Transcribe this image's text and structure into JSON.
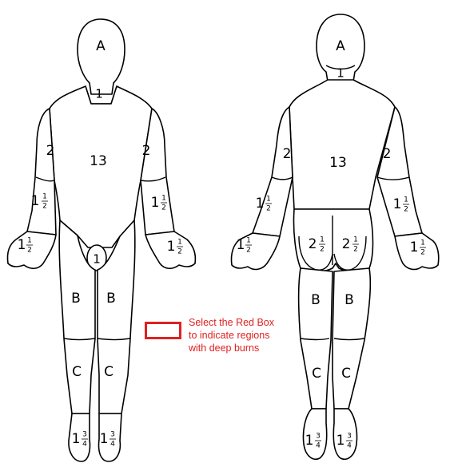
{
  "front": {
    "head": "A",
    "neck": "1",
    "trunk": "13",
    "upper_arm_left": "2",
    "upper_arm_right": "2",
    "forearm_left": {
      "whole": "1",
      "num": "1",
      "den": "2"
    },
    "forearm_right": {
      "whole": "1",
      "num": "1",
      "den": "2"
    },
    "hand_left": {
      "whole": "1",
      "num": "1",
      "den": "2"
    },
    "hand_right": {
      "whole": "1",
      "num": "1",
      "den": "2"
    },
    "genitals": "1",
    "thigh_left": "B",
    "thigh_right": "B",
    "leg_left": "C",
    "leg_right": "C",
    "foot_left": {
      "whole": "1",
      "num": "3",
      "den": "4"
    },
    "foot_right": {
      "whole": "1",
      "num": "3",
      "den": "4"
    }
  },
  "back": {
    "head": "A",
    "neck": "1",
    "trunk": "13",
    "upper_arm_left": "2",
    "upper_arm_right": "2",
    "forearm_left": {
      "whole": "1",
      "num": "1",
      "den": "2"
    },
    "forearm_right": {
      "whole": "1",
      "num": "1",
      "den": "2"
    },
    "hand_left": {
      "whole": "1",
      "num": "1",
      "den": "2"
    },
    "hand_right": {
      "whole": "1",
      "num": "1",
      "den": "2"
    },
    "buttock_left": {
      "whole": "2",
      "num": "1",
      "den": "2"
    },
    "buttock_right": {
      "whole": "2",
      "num": "1",
      "den": "2"
    },
    "thigh_left": "B",
    "thigh_right": "B",
    "leg_left": "C",
    "leg_right": "C",
    "foot_left": {
      "whole": "1",
      "num": "3",
      "den": "4"
    },
    "foot_right": {
      "whole": "1",
      "num": "3",
      "den": "4"
    }
  },
  "instruction": {
    "line1": "Select the Red Box",
    "line2": "to indicate regions",
    "line3": "with deep burns"
  },
  "colors": {
    "accent": "#e02020"
  }
}
